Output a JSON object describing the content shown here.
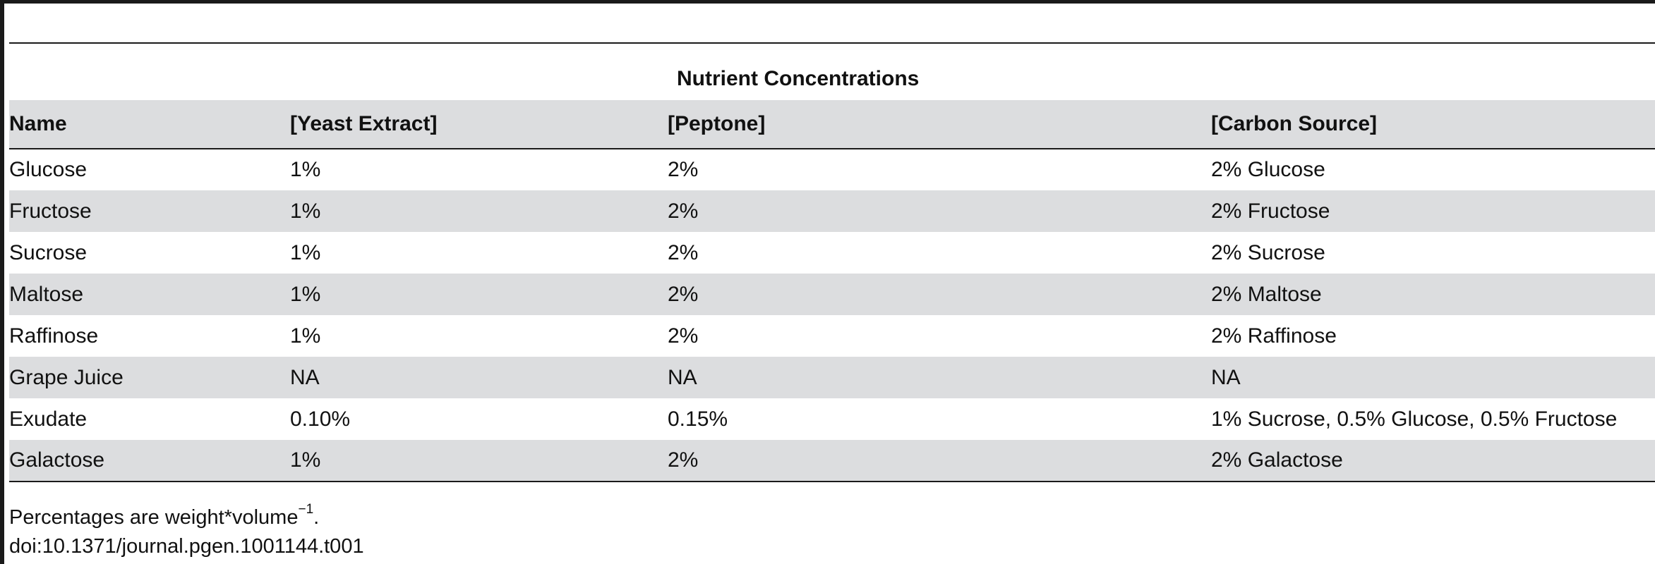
{
  "table": {
    "group_header": "Nutrient Concentrations",
    "columns": [
      "Name",
      "[Yeast Extract]",
      "[Peptone]",
      "[Carbon Source]"
    ],
    "rows": [
      [
        "Glucose",
        "1%",
        "2%",
        "2% Glucose"
      ],
      [
        "Fructose",
        "1%",
        "2%",
        "2% Fructose"
      ],
      [
        "Sucrose",
        "1%",
        "2%",
        "2% Sucrose"
      ],
      [
        "Maltose",
        "1%",
        "2%",
        "2% Maltose"
      ],
      [
        "Raffinose",
        "1%",
        "2%",
        "2% Raffinose"
      ],
      [
        "Grape Juice",
        "NA",
        "NA",
        "NA"
      ],
      [
        "Exudate",
        "0.10%",
        "0.15%",
        "1% Sucrose, 0.5% Glucose, 0.5% Fructose"
      ],
      [
        "Galactose",
        "1%",
        "2%",
        "2% Galactose"
      ]
    ]
  },
  "footnote": {
    "text": "Percentages are weight*volume",
    "superscript": "−1",
    "end": "."
  },
  "doi": "doi:10.1371/journal.pgen.1001144.t001"
}
